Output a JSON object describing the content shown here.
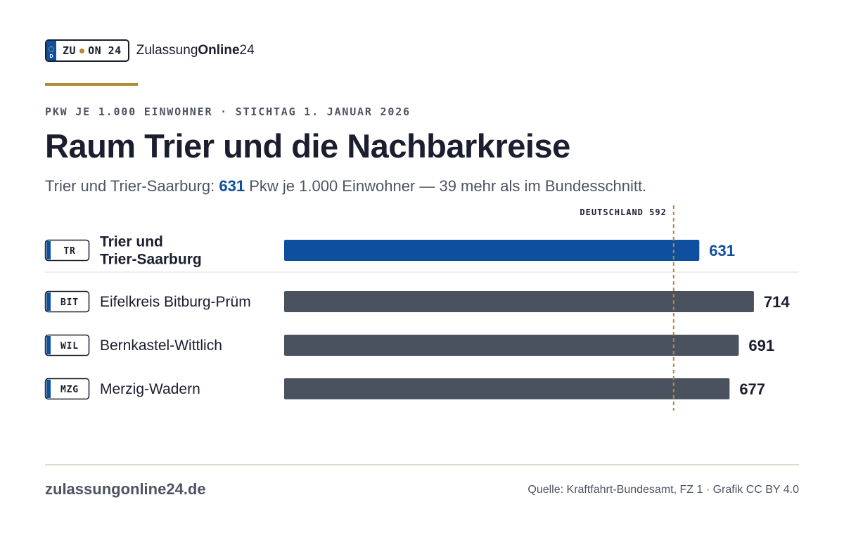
{
  "header": {
    "plate_left": "ZU",
    "plate_right": "ON 24",
    "plate_country": "D",
    "brand_regular": "Zulassung",
    "brand_bold": "Online",
    "brand_suffix": "24"
  },
  "kicker": "PKW JE 1.000 EINWOHNER · STICHTAG 1. JANUAR 2026",
  "title": "Raum Trier und die Nachbarkreise",
  "subtitle": {
    "prefix": "Trier und Trier-Saarburg: ",
    "highlight": "631",
    "suffix": " Pkw je 1.000 Einwohner — 39 mehr als im Bundesschnitt."
  },
  "colors": {
    "highlight": "#0f4fa0",
    "bar": "#4a5260",
    "reference": "#b38a34",
    "text": "#1b1e2e"
  },
  "chart_data": {
    "type": "bar",
    "orientation": "horizontal",
    "categories": [
      "Trier und Trier-Saarburg",
      "Eifelkreis Bitburg-Prüm",
      "Bernkastel-Wittlich",
      "Merzig-Wadern"
    ],
    "category_lines": [
      [
        "Trier und",
        "Trier-Saarburg"
      ],
      [
        "Eifelkreis Bitburg-Prüm"
      ],
      [
        "Bernkastel-Wittlich"
      ],
      [
        "Merzig-Wadern"
      ]
    ],
    "codes": [
      "TR",
      "BIT",
      "WIL",
      "MZG"
    ],
    "values": [
      631,
      714,
      691,
      677
    ],
    "highlight_index": 0,
    "reference": {
      "label": "DEUTSCHLAND 592",
      "value": 592
    },
    "xlim": [
      0,
      744
    ],
    "grid": false
  },
  "footer": {
    "site": "zulassungonline24.de",
    "source": "Quelle: Kraftfahrt-Bundesamt, FZ 1 · Grafik CC BY 4.0"
  }
}
